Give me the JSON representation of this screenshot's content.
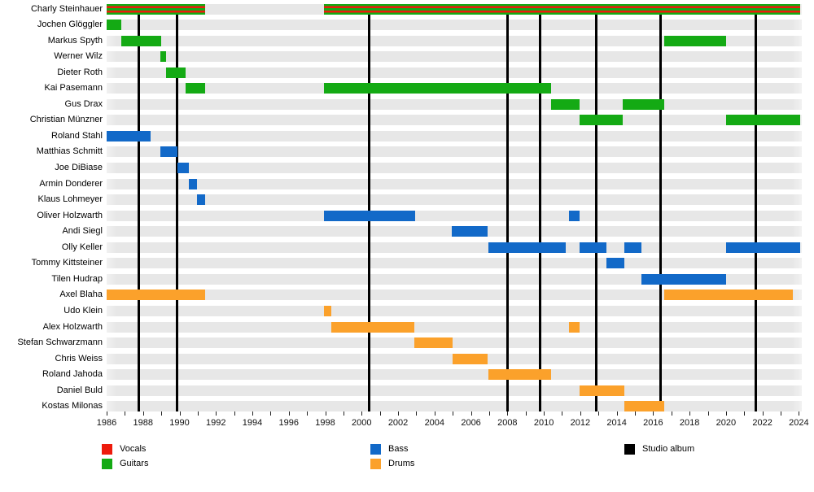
{
  "chart_data": {
    "type": "timeline",
    "title": "",
    "description": "Band members timeline (Gantt-style) with roles by color and studio album release lines",
    "x_axis": {
      "start": 1986,
      "end": 2024,
      "tick_every_years": 1,
      "label_every_years": 2,
      "tick_labels": [
        "1986",
        "1988",
        "1990",
        "1992",
        "1994",
        "1996",
        "1998",
        "2000",
        "2002",
        "2004",
        "2006",
        "2008",
        "2010",
        "2012",
        "2014",
        "2016",
        "2018",
        "2020",
        "2022",
        "2024"
      ]
    },
    "colors": {
      "vocals": "#ed1b0c",
      "guitars": "#14aa14",
      "bass": "#1269c8",
      "drums": "#fba12b",
      "album": "#000000",
      "row_band": "#e7e7e7",
      "background": "#ffffff"
    },
    "legend": [
      {
        "label": "Vocals",
        "role": "vocals"
      },
      {
        "label": "Guitars",
        "role": "guitars"
      },
      {
        "label": "Bass",
        "role": "bass"
      },
      {
        "label": "Drums",
        "role": "drums"
      },
      {
        "label": "Studio album",
        "role": "album"
      }
    ],
    "album_release_lines": [
      1987.77,
      1989.87,
      2000.42,
      2008.0,
      2009.8,
      2012.9,
      2016.4,
      2021.65
    ],
    "members": [
      {
        "name": "Charly Steinhauer",
        "roles": [
          "vocals",
          "guitars"
        ],
        "segments": [
          [
            1986,
            1991.42
          ],
          [
            1997.95,
            2024.05
          ]
        ]
      },
      {
        "name": "Jochen Glöggler",
        "roles": [
          "guitars"
        ],
        "segments": [
          [
            1986,
            1986.8
          ]
        ]
      },
      {
        "name": "Markus Spyth",
        "roles": [
          "guitars"
        ],
        "segments": [
          [
            1986.8,
            1989.0
          ],
          [
            2016.63,
            2020.0
          ]
        ]
      },
      {
        "name": "Werner Wilz",
        "roles": [
          "guitars"
        ],
        "segments": [
          [
            1988.97,
            1989.28
          ]
        ]
      },
      {
        "name": "Dieter Roth",
        "roles": [
          "guitars"
        ],
        "segments": [
          [
            1989.28,
            1990.35
          ]
        ]
      },
      {
        "name": "Kai Pasemann",
        "roles": [
          "guitars"
        ],
        "segments": [
          [
            1990.35,
            1991.42
          ],
          [
            1997.95,
            2010.4
          ]
        ]
      },
      {
        "name": "Gus Drax",
        "roles": [
          "guitars"
        ],
        "segments": [
          [
            2010.4,
            2011.95
          ],
          [
            2014.35,
            2016.63
          ]
        ]
      },
      {
        "name": "Christian Münzner",
        "roles": [
          "guitars"
        ],
        "segments": [
          [
            2011.95,
            2014.35
          ],
          [
            2020.0,
            2024.05
          ]
        ]
      },
      {
        "name": "Roland Stahl",
        "roles": [
          "bass"
        ],
        "segments": [
          [
            1986,
            1988.42
          ]
        ]
      },
      {
        "name": "Matthias Schmitt",
        "roles": [
          "bass"
        ],
        "segments": [
          [
            1988.95,
            1989.87
          ]
        ]
      },
      {
        "name": "Joe DiBiase",
        "roles": [
          "bass"
        ],
        "segments": [
          [
            1989.87,
            1990.5
          ]
        ]
      },
      {
        "name": "Armin Donderer",
        "roles": [
          "bass"
        ],
        "segments": [
          [
            1990.5,
            1990.97
          ]
        ]
      },
      {
        "name": "Klaus Lohmeyer",
        "roles": [
          "bass"
        ],
        "segments": [
          [
            1990.97,
            1991.42
          ]
        ]
      },
      {
        "name": "Oliver Holzwarth",
        "roles": [
          "bass"
        ],
        "segments": [
          [
            1997.95,
            2002.92
          ],
          [
            2011.38,
            2011.95
          ]
        ]
      },
      {
        "name": "Andi Siegl",
        "roles": [
          "bass"
        ],
        "segments": [
          [
            2004.95,
            2006.92
          ]
        ]
      },
      {
        "name": "Olly Keller",
        "roles": [
          "bass"
        ],
        "segments": [
          [
            2006.95,
            2011.2
          ],
          [
            2011.98,
            2013.42
          ],
          [
            2014.4,
            2015.38
          ],
          [
            2020.0,
            2024.05
          ]
        ]
      },
      {
        "name": "Tommy Kittsteiner",
        "roles": [
          "bass"
        ],
        "segments": [
          [
            2013.42,
            2014.4
          ]
        ]
      },
      {
        "name": "Tilen Hudrap",
        "roles": [
          "bass"
        ],
        "segments": [
          [
            2015.38,
            2020.0
          ]
        ]
      },
      {
        "name": "Axel Blaha",
        "roles": [
          "drums"
        ],
        "segments": [
          [
            1986,
            1991.42
          ],
          [
            2016.63,
            2023.65
          ]
        ]
      },
      {
        "name": "Udo Klein",
        "roles": [
          "drums"
        ],
        "segments": [
          [
            1997.95,
            1998.32
          ]
        ]
      },
      {
        "name": "Alex Holzwarth",
        "roles": [
          "drums"
        ],
        "segments": [
          [
            1998.35,
            2002.88
          ],
          [
            2011.38,
            2011.95
          ]
        ]
      },
      {
        "name": "Stefan Schwarzmann",
        "roles": [
          "drums"
        ],
        "segments": [
          [
            2002.88,
            2005.0
          ]
        ]
      },
      {
        "name": "Chris Weiss",
        "roles": [
          "drums"
        ],
        "segments": [
          [
            2004.97,
            2006.9
          ]
        ]
      },
      {
        "name": "Roland Jahoda",
        "roles": [
          "drums"
        ],
        "segments": [
          [
            2006.95,
            2010.4
          ]
        ]
      },
      {
        "name": "Daniel Buld",
        "roles": [
          "drums"
        ],
        "segments": [
          [
            2011.95,
            2014.4
          ]
        ]
      },
      {
        "name": "Kostas Milonas",
        "roles": [
          "drums"
        ],
        "segments": [
          [
            2014.4,
            2016.63
          ]
        ]
      }
    ]
  }
}
